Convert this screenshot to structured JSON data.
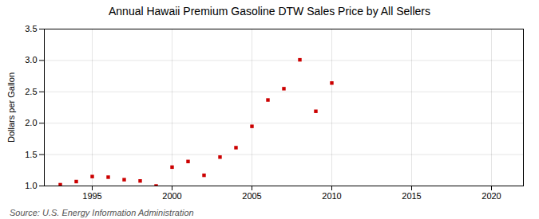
{
  "chart_data": {
    "type": "scatter",
    "title": "Annual Hawaii Premium Gasoline DTW Sales Price by All Sellers",
    "ylabel": "Dollars per Gallon",
    "source": "Source: U.S. Energy Information Administration",
    "x": [
      1993,
      1994,
      1995,
      1996,
      1997,
      1998,
      1999,
      2000,
      2001,
      2002,
      2003,
      2004,
      2005,
      2006,
      2007,
      2008,
      2009,
      2010
    ],
    "values": [
      1.02,
      1.07,
      1.15,
      1.14,
      1.1,
      1.08,
      1.0,
      1.3,
      1.39,
      1.17,
      1.46,
      1.61,
      1.95,
      2.37,
      2.55,
      3.01,
      2.19,
      2.64
    ],
    "color": "#cc0000",
    "marker": "square",
    "xlim": [
      1992,
      2022
    ],
    "ylim": [
      1.0,
      3.5
    ],
    "xticks": [
      1995,
      2000,
      2005,
      2010,
      2015,
      2020
    ],
    "yticks": [
      {
        "value": 1.0,
        "label": "1.0"
      },
      1.5,
      {
        "value": 2.0,
        "label": "2.0"
      },
      2.5,
      {
        "value": 3.0,
        "label": "3.0"
      },
      3.5
    ],
    "grid": true
  }
}
